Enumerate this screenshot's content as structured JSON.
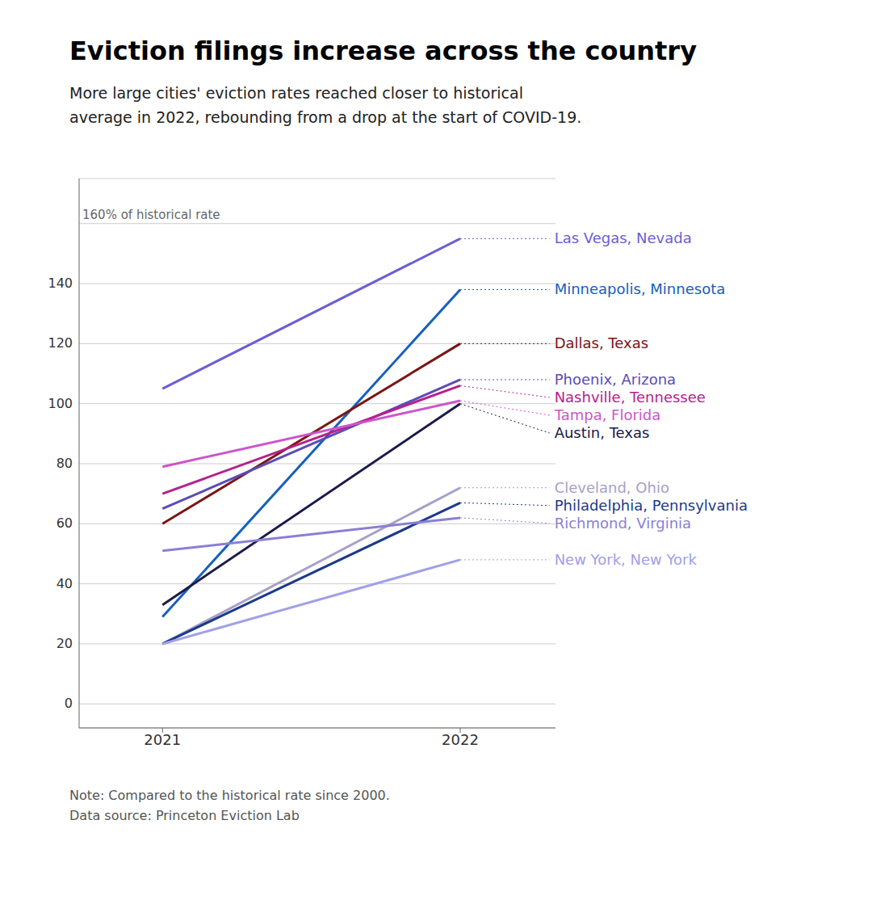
{
  "chart_data": {
    "type": "line",
    "title": "Eviction filings increase across the country",
    "subtitle": "More large cities' eviction rates reached closer to historical\naverage in 2022, rebounding from a drop at the start of COVID-19.",
    "annotations": [
      "Note: Compared to the historical rate since 2000.",
      "Data source: Princeton Eviction Lab"
    ],
    "x": [
      2021,
      2022
    ],
    "xlim": [
      2020.72,
      2022.32
    ],
    "xticks": [
      2021,
      2022
    ],
    "ylim": [
      -8,
      175
    ],
    "yticks": [
      0,
      20,
      40,
      60,
      80,
      100,
      120,
      140,
      {
        "value": 160,
        "label": "160% of historical rate"
      }
    ],
    "grid": true,
    "series": [
      {
        "name": "Las Vegas, Nevada",
        "color": "#6B5FD4",
        "values": [
          105,
          155
        ]
      },
      {
        "name": "Minneapolis, Minnesota",
        "color": "#1560BD",
        "values": [
          29,
          138
        ]
      },
      {
        "name": "Dallas, Texas",
        "color": "#7B1515",
        "values": [
          60,
          120
        ]
      },
      {
        "name": "Phoenix, Arizona",
        "color": "#5B4CB8",
        "values": [
          65,
          108
        ]
      },
      {
        "name": "Nashville, Tennessee",
        "color": "#B5218C",
        "values": [
          70,
          106
        ]
      },
      {
        "name": "Tampa, Florida",
        "color": "#CC55CC",
        "values": [
          79,
          101
        ]
      },
      {
        "name": "Austin, Texas",
        "color": "#1A1A4A",
        "values": [
          33,
          100
        ]
      },
      {
        "name": "Cleveland, Ohio",
        "color": "#A89FC8",
        "values": [
          20,
          72
        ]
      },
      {
        "name": "Philadelphia, Pennsylvania",
        "color": "#1C3A8A",
        "values": [
          20,
          67
        ]
      },
      {
        "name": "Richmond, Virginia",
        "color": "#8B7FD4",
        "values": [
          51,
          62
        ]
      },
      {
        "name": "New York, New York",
        "color": "#A0A0E8",
        "values": [
          20,
          48
        ]
      }
    ]
  }
}
